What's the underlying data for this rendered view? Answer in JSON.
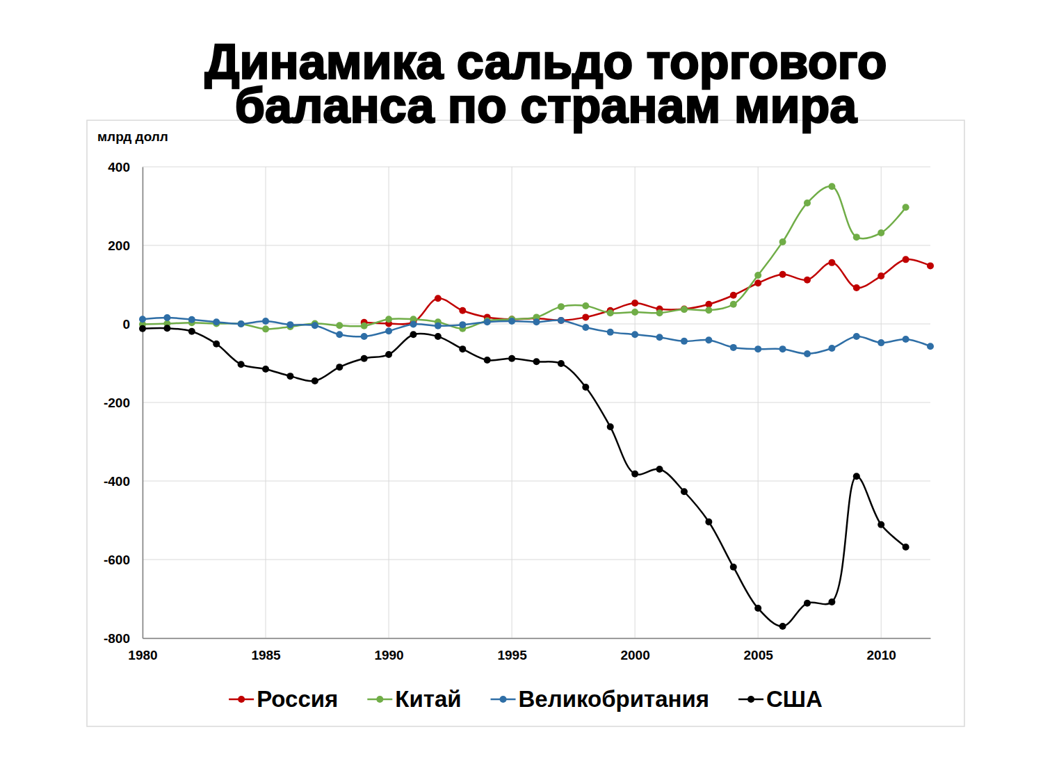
{
  "chart_data": {
    "type": "line",
    "title": "Динамика сальдо торгового баланса по странам мира",
    "y_label": "млрд долл",
    "x": [
      1980,
      1981,
      1982,
      1983,
      1984,
      1985,
      1986,
      1987,
      1988,
      1989,
      1990,
      1991,
      1992,
      1993,
      1994,
      1995,
      1996,
      1997,
      1998,
      1999,
      2000,
      2001,
      2002,
      2003,
      2004,
      2005,
      2006,
      2007,
      2008,
      2009,
      2010,
      2011,
      2012
    ],
    "xlim": [
      1980,
      2012
    ],
    "xticks": [
      1980,
      1985,
      1990,
      1995,
      2000,
      2005,
      2010
    ],
    "ylim": [
      -800,
      400
    ],
    "yticks": [
      -800,
      -600,
      -400,
      -200,
      0,
      200,
      400
    ],
    "grid": true,
    "legend": "bottom",
    "marker": "circle",
    "line_style": "solid",
    "series": [
      {
        "name": "Россия",
        "color": "#c00000",
        "values": [
          null,
          null,
          null,
          null,
          null,
          null,
          null,
          null,
          null,
          4,
          1,
          4,
          65,
          34,
          17,
          12,
          14,
          9,
          17,
          34,
          53,
          38,
          38,
          50,
          73,
          104,
          126,
          112,
          156,
          92,
          122,
          164,
          148
        ]
      },
      {
        "name": "Китай",
        "color": "#70ad47",
        "values": [
          -1,
          1,
          3,
          1,
          0,
          -13,
          -7,
          1,
          -4,
          -5,
          12,
          12,
          5,
          -12,
          8,
          12,
          17,
          44,
          46,
          28,
          30,
          28,
          37,
          35,
          50,
          124,
          209,
          308,
          350,
          221,
          232,
          297,
          null
        ]
      },
      {
        "name": "Великобритания",
        "color": "#2e6ea6",
        "values": [
          12,
          16,
          11,
          5,
          0,
          7,
          -2,
          -4,
          -27,
          -32,
          -18,
          -1,
          -5,
          -2,
          5,
          7,
          5,
          9,
          -9,
          -21,
          -27,
          -34,
          -44,
          -41,
          -60,
          -64,
          -64,
          -76,
          -62,
          -32,
          -48,
          -39,
          -57
        ]
      },
      {
        "name": "США",
        "color": "#000000",
        "values": [
          -12,
          -11,
          -19,
          -51,
          -103,
          -115,
          -133,
          -145,
          -110,
          -88,
          -78,
          -27,
          -32,
          -64,
          -92,
          -88,
          -96,
          -101,
          -161,
          -262,
          -382,
          -370,
          -427,
          -504,
          -619,
          -724,
          -770,
          -711,
          -708,
          -388,
          -511,
          -568,
          null
        ]
      }
    ]
  }
}
